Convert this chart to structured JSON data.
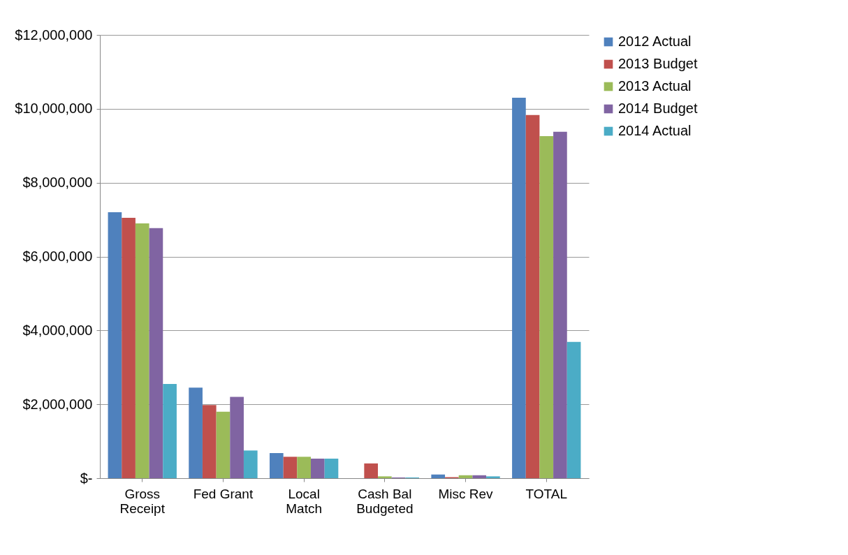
{
  "chart_data": {
    "type": "bar",
    "categories": [
      "Gross Receipt",
      "Fed Grant",
      "Local Match",
      "Cash Bal Budgeted",
      "Misc Rev",
      "TOTAL"
    ],
    "series": [
      {
        "name": "2012 Actual",
        "color": "#4f81bd",
        "values": [
          7200000,
          2450000,
          680000,
          0,
          100000,
          10300000
        ]
      },
      {
        "name": "2013 Budget",
        "color": "#c0504d",
        "values": [
          7050000,
          1980000,
          580000,
          400000,
          30000,
          9830000
        ]
      },
      {
        "name": "2013 Actual",
        "color": "#9bbb59",
        "values": [
          6900000,
          1800000,
          580000,
          50000,
          80000,
          9260000
        ]
      },
      {
        "name": "2014 Budget",
        "color": "#8064a2",
        "values": [
          6770000,
          2200000,
          530000,
          20000,
          80000,
          9380000
        ]
      },
      {
        "name": "2014 Actual",
        "color": "#4bacc6",
        "values": [
          2550000,
          750000,
          530000,
          20000,
          50000,
          3690000
        ]
      }
    ],
    "ylim": [
      0,
      12000000
    ],
    "yticks": [
      {
        "value": 0,
        "label": "$-"
      },
      {
        "value": 2000000,
        "label": "$2,000,000"
      },
      {
        "value": 4000000,
        "label": "$4,000,000"
      },
      {
        "value": 6000000,
        "label": "$6,000,000"
      },
      {
        "value": 8000000,
        "label": "$8,000,000"
      },
      {
        "value": 10000000,
        "label": "$10,000,000"
      },
      {
        "value": 12000000,
        "label": "$12,000,000"
      }
    ],
    "grid": "y",
    "legend": "right"
  }
}
